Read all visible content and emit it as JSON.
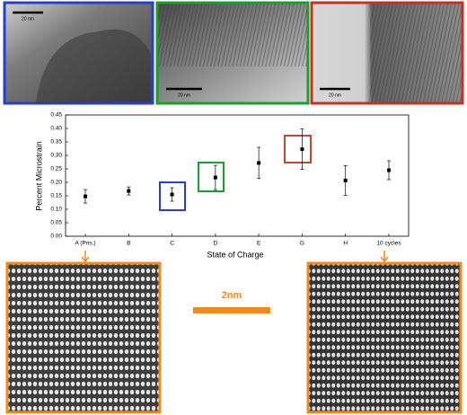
{
  "images": {
    "tem_scale_labels": [
      "20 nm",
      "20 nm",
      "20 nm"
    ],
    "lattice_scale_label": "2nm"
  },
  "chart_data": {
    "type": "errorbar",
    "x_label": "State of Charge",
    "y_label": "Percent Microstrain",
    "categories": [
      "A (Pris.)",
      "B",
      "C",
      "D",
      "E",
      "G",
      "H",
      "10 cycles"
    ],
    "values": [
      0.148,
      0.168,
      0.155,
      0.218,
      0.272,
      0.323,
      0.207,
      0.245
    ],
    "errors": [
      0.025,
      0.015,
      0.025,
      0.045,
      0.058,
      0.075,
      0.055,
      0.035
    ],
    "color": "#000000",
    "ylim": [
      0,
      0.45
    ],
    "yticks": [
      {
        "value": 0,
        "label": "0.00"
      },
      0.05,
      {
        "value": 0.1,
        "label": "0.10"
      },
      0.15,
      {
        "value": 0.2,
        "label": "0.20"
      },
      0.25,
      {
        "value": 0.3,
        "label": "0.30"
      },
      0.35,
      {
        "value": 0.4,
        "label": "0.40"
      },
      0.45
    ]
  }
}
